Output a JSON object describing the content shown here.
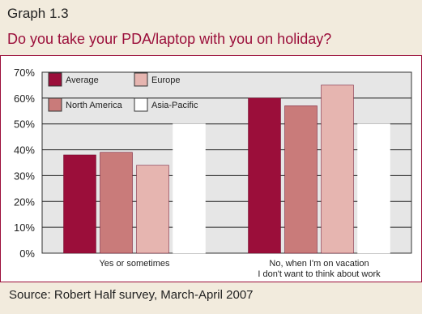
{
  "header": {
    "graph_number": "Graph 1.3",
    "title": "Do you take your PDA/laptop with you on holiday?"
  },
  "footer": {
    "source": "Source: Robert Half survey, March-April 2007"
  },
  "colors": {
    "background": "#f2ebdd",
    "plot_background": "#e6e6e6",
    "accent": "#9b0e3a"
  },
  "chart_data": {
    "type": "bar",
    "title": "Do you take your PDA/laptop with you on holiday?",
    "xlabel": "",
    "ylabel": "",
    "ylim": [
      0,
      70
    ],
    "ytick_labels": [
      "0%",
      "10%",
      "20%",
      "30%",
      "40%",
      "50%",
      "60%",
      "70%"
    ],
    "grid": true,
    "legend_position": "top-left",
    "categories": [
      [
        "Yes or sometimes"
      ],
      [
        "No, when I'm on vacation",
        "I don't want to think about work"
      ]
    ],
    "series": [
      {
        "name": "Average",
        "color": "#9b0e3a",
        "values": [
          38,
          60
        ]
      },
      {
        "name": "North America",
        "color": "#c97b7a",
        "values": [
          39,
          57
        ]
      },
      {
        "name": "Europe",
        "color": "#e6b5b0",
        "values": [
          34,
          65
        ]
      },
      {
        "name": "Asia-Pacific",
        "color": "#ffffff",
        "values": [
          50,
          50
        ]
      }
    ],
    "legend_order": [
      "Average",
      "Europe",
      "North America",
      "Asia-Pacific"
    ]
  }
}
